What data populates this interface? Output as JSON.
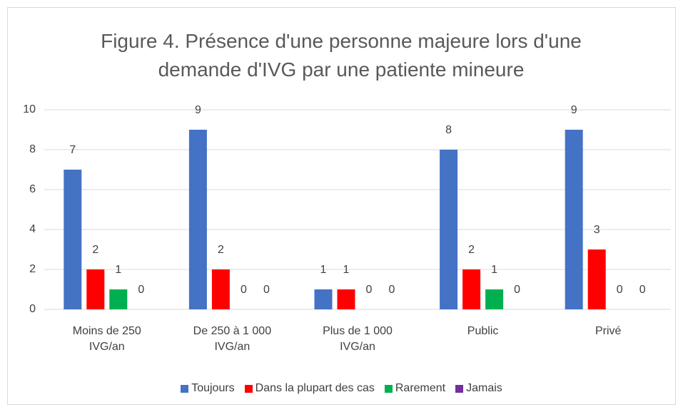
{
  "chart_data": {
    "type": "bar",
    "title": "Figure 4. Présence d'une personne majeure lors d'une demande d'IVG par une patiente mineure",
    "categories": [
      "Moins de 250 IVG/an",
      "De 250 à 1 000 IVG/an",
      "Plus de 1 000 IVG/an",
      "Public",
      "Privé"
    ],
    "series": [
      {
        "name": "Toujours",
        "color": "#4472c4",
        "values": [
          7,
          9,
          1,
          8,
          9
        ]
      },
      {
        "name": "Dans la plupart des cas",
        "color": "#ff0000",
        "values": [
          2,
          2,
          1,
          2,
          3
        ]
      },
      {
        "name": "Rarement",
        "color": "#00b050",
        "values": [
          1,
          0,
          0,
          1,
          0
        ]
      },
      {
        "name": "Jamais",
        "color": "#7030a0",
        "values": [
          0,
          0,
          0,
          0,
          0
        ]
      }
    ],
    "ylim": [
      0,
      10
    ],
    "yticks": [
      0,
      2,
      4,
      6,
      8,
      10
    ],
    "grid": true,
    "legend": "bottom"
  }
}
